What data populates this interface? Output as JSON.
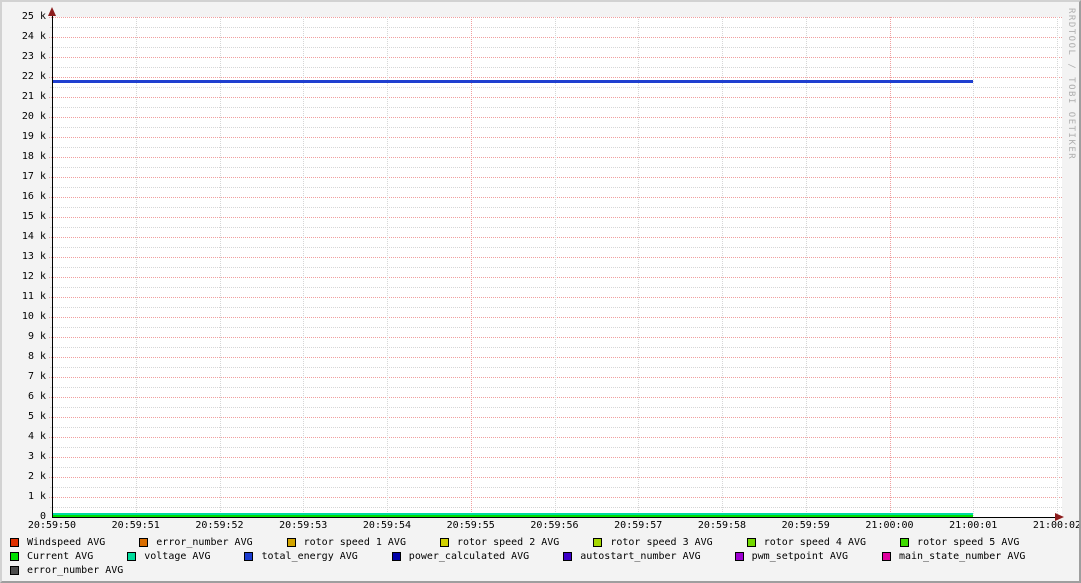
{
  "watermark": "RRDTOOL / TOBI OETIKER",
  "chart_data": {
    "type": "line",
    "title": "",
    "xlabel": "",
    "ylabel": "",
    "ylim": [
      0,
      25000
    ],
    "grid": {
      "y_minor_step": 500,
      "y_major_step": 1000,
      "x_minor_every_seconds": 1,
      "x_major_every_seconds": 5,
      "style": "dotted"
    },
    "y_tick_labels": [
      "0",
      "1 k",
      "2 k",
      "3 k",
      "4 k",
      "5 k",
      "6 k",
      "7 k",
      "8 k",
      "9 k",
      "10 k",
      "11 k",
      "12 k",
      "13 k",
      "14 k",
      "15 k",
      "16 k",
      "17 k",
      "18 k",
      "19 k",
      "20 k",
      "21 k",
      "22 k",
      "23 k",
      "24 k",
      "25 k"
    ],
    "x_tick_labels": [
      "20:59:50",
      "20:59:51",
      "20:59:52",
      "20:59:53",
      "20:59:54",
      "20:59:55",
      "20:59:56",
      "20:59:57",
      "20:59:58",
      "20:59:59",
      "21:00:00",
      "21:00:01",
      "21:00:02"
    ],
    "series": [
      {
        "name": "total_energy AVG",
        "color": "#1f3fd0",
        "approx_value": 21800,
        "x_start": "20:59:50",
        "x_end": "21:00:01",
        "line_width": 3
      },
      {
        "name": "voltage AVG",
        "color": "#00dba2",
        "approx_value": 160,
        "x_start": "20:59:50",
        "x_end": "21:00:01",
        "line_width": 2
      },
      {
        "name": "Current AVG",
        "color": "#00df00",
        "approx_value": 60,
        "x_start": "20:59:50",
        "x_end": "21:00:01",
        "line_width": 2
      }
    ]
  },
  "legend": {
    "rows": [
      [
        {
          "label": "Windspeed AVG",
          "color": "#e03000"
        },
        {
          "label": "error_number AVG",
          "color": "#d96d00"
        },
        {
          "label": "rotor speed 1 AVG",
          "color": "#d2a500"
        },
        {
          "label": "rotor speed 2 AVG",
          "color": "#d0d000"
        },
        {
          "label": "rotor speed 3 AVG",
          "color": "#a5d800"
        },
        {
          "label": "rotor speed 4 AVG",
          "color": "#73d900"
        },
        {
          "label": "rotor speed 5 AVG",
          "color": "#3fdb00"
        }
      ],
      [
        {
          "label": "Current AVG",
          "color": "#00e000"
        },
        {
          "label": "voltage AVG",
          "color": "#00dc9c"
        },
        {
          "label": "total_energy AVG",
          "color": "#1b3ccf"
        },
        {
          "label": "power_calculated AVG",
          "color": "#0000a8"
        },
        {
          "label": "autostart_number AVG",
          "color": "#3c00c8"
        },
        {
          "label": "pwm_setpoint AVG",
          "color": "#9e00d2"
        },
        {
          "label": "main_state_number AVG",
          "color": "#df009e"
        }
      ],
      [
        {
          "label": "error_number AVG",
          "color": "#4d4d4d"
        }
      ]
    ]
  }
}
